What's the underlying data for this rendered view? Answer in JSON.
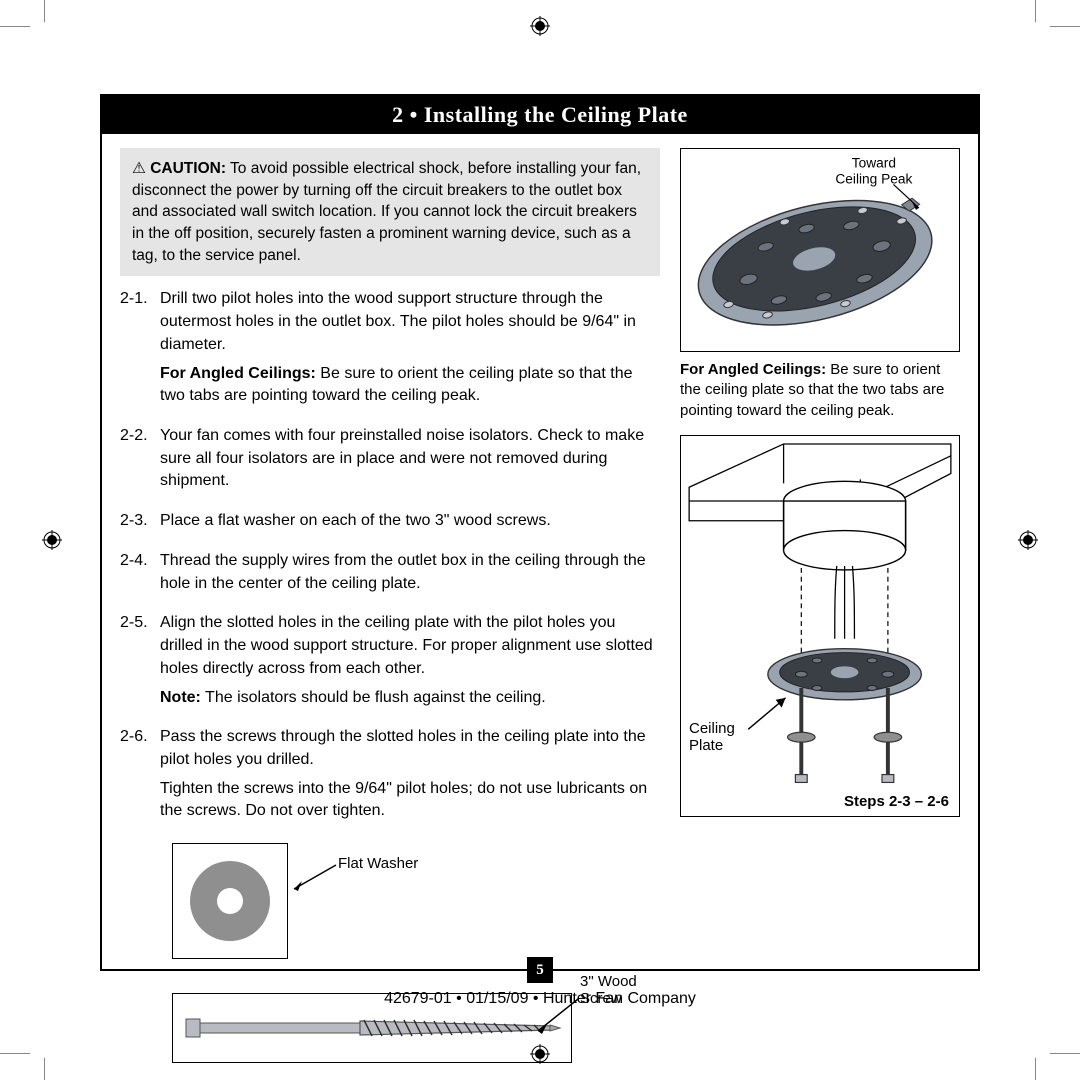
{
  "title": "2 • Installing the Ceiling Plate",
  "caution": {
    "label": "CAUTION:",
    "text": " To avoid possible electrical shock, before installing your fan, disconnect the power by turning off the circuit breakers to the outlet box and associated wall switch location. If you cannot lock the circuit breakers in the off position, securely fasten a prominent warning device, such as a tag, to the service panel."
  },
  "steps": [
    {
      "num": "2-1.",
      "paras": [
        "Drill two pilot holes into the wood support structure through the outermost holes in the outlet box. The pilot holes should be 9/64\" in diameter.",
        "<b>For Angled Ceilings:</b> Be sure to orient the ceiling plate so that the two tabs are pointing toward the ceiling peak."
      ]
    },
    {
      "num": "2-2.",
      "paras": [
        "Your fan comes with four preinstalled noise isolators. Check to make sure all four isolators are in place and were not removed during shipment."
      ]
    },
    {
      "num": "2-3.",
      "paras": [
        "Place a flat washer on each of the two 3\" wood screws."
      ]
    },
    {
      "num": "2-4.",
      "paras": [
        "Thread the supply wires from the outlet box in the ceiling through the hole in the center of the ceiling plate."
      ]
    },
    {
      "num": "2-5.",
      "paras": [
        "Align the slotted holes in the ceiling plate with the pilot holes you drilled in the wood support structure. For proper alignment use slotted holes directly across from each other.",
        "<b>Note:</b> The isolators should be flush against the ceiling."
      ]
    },
    {
      "num": "2-6.",
      "paras": [
        "Pass the screws through the slotted holes in the ceiling plate into the pilot holes you drilled.",
        "Tighten the screws into the 9/64\" pilot holes; do not use lubricants on the screws. Do not over tighten."
      ]
    }
  ],
  "fig1": {
    "callout": "Toward\nCeiling Peak",
    "caption_bold": "For Angled Ceilings:",
    "caption_rest": " Be sure to orient the ceiling plate so that the two tabs are pointing toward the ceiling peak."
  },
  "fig2": {
    "label": "Ceiling\nPlate",
    "steps": "Steps 2-3 – 2-6"
  },
  "hw": {
    "washer": "Flat Washer",
    "screw": "3\" Wood\nScrew"
  },
  "colors": {
    "plate_fill": "#9aa4b0",
    "plate_dark": "#3a3f45",
    "washer_fill": "#8f8f8f",
    "screw_fill": "#b8bcc2"
  },
  "page_number": "5",
  "footer": "42679-01  •  01/15/09  •  Hunter Fan Company"
}
